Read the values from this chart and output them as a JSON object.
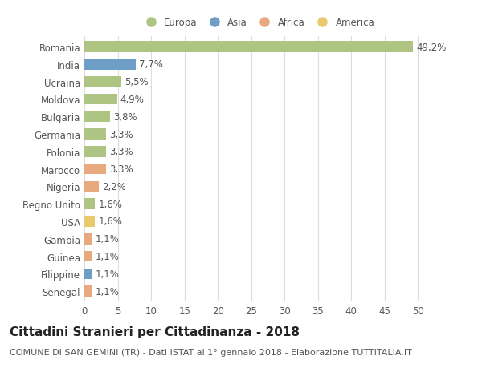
{
  "countries": [
    "Romania",
    "India",
    "Ucraina",
    "Moldova",
    "Bulgaria",
    "Germania",
    "Polonia",
    "Marocco",
    "Nigeria",
    "Regno Unito",
    "USA",
    "Gambia",
    "Guinea",
    "Filippine",
    "Senegal"
  ],
  "values": [
    49.2,
    7.7,
    5.5,
    4.9,
    3.8,
    3.3,
    3.3,
    3.3,
    2.2,
    1.6,
    1.6,
    1.1,
    1.1,
    1.1,
    1.1
  ],
  "labels": [
    "49,2%",
    "7,7%",
    "5,5%",
    "4,9%",
    "3,8%",
    "3,3%",
    "3,3%",
    "3,3%",
    "2,2%",
    "1,6%",
    "1,6%",
    "1,1%",
    "1,1%",
    "1,1%",
    "1,1%"
  ],
  "colors": [
    "#aec483",
    "#6e9dc8",
    "#aec483",
    "#aec483",
    "#aec483",
    "#aec483",
    "#aec483",
    "#e8a97e",
    "#e8a97e",
    "#aec483",
    "#e8c96e",
    "#e8a97e",
    "#e8a97e",
    "#6e9dc8",
    "#e8a97e"
  ],
  "legend_labels": [
    "Europa",
    "Asia",
    "Africa",
    "America"
  ],
  "legend_colors": [
    "#aec483",
    "#6e9dc8",
    "#e8a97e",
    "#e8c96e"
  ],
  "title": "Cittadini Stranieri per Cittadinanza - 2018",
  "subtitle": "COMUNE DI SAN GEMINI (TR) - Dati ISTAT al 1° gennaio 2018 - Elaborazione TUTTITALIA.IT",
  "xlim": [
    0,
    52
  ],
  "xticks": [
    0,
    5,
    10,
    15,
    20,
    25,
    30,
    35,
    40,
    45,
    50
  ],
  "bg_color": "#ffffff",
  "grid_color": "#dddddd",
  "bar_height": 0.62,
  "label_fontsize": 8.5,
  "tick_fontsize": 8.5,
  "title_fontsize": 11,
  "subtitle_fontsize": 8
}
